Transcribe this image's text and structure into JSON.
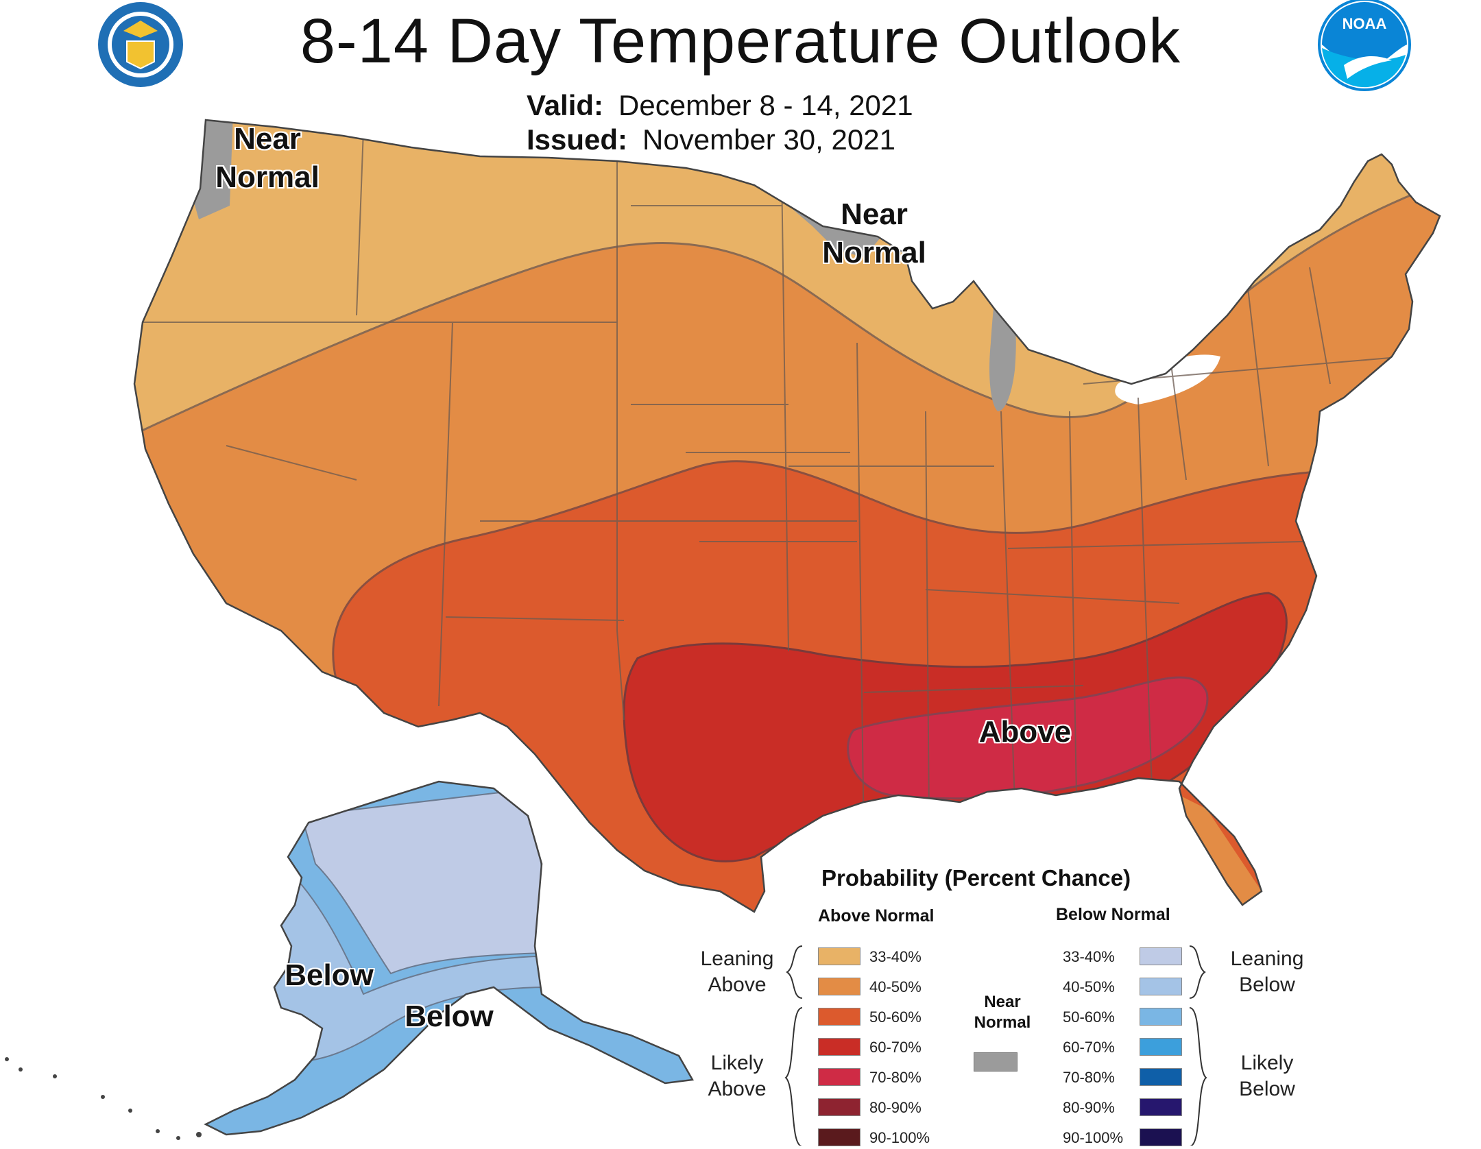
{
  "header": {
    "title": "8-14 Day Temperature Outlook",
    "valid_label": "Valid:",
    "valid_value": "December 8 - 14, 2021",
    "issued_label": "Issued:",
    "issued_value": "November 30, 2021"
  },
  "logos": {
    "left": {
      "icon": "department-of-commerce-seal-icon",
      "color": "#1f6fb5"
    },
    "right": {
      "icon": "noaa-logo-icon",
      "text": "NOAA",
      "color": "#0a85d6"
    }
  },
  "map_labels": {
    "pacific_nw": "Near\nNormal",
    "great_lakes": "Near\nNormal",
    "southeast": "Above",
    "alaska_north": "Below",
    "alaska_south": "Below"
  },
  "legend": {
    "title": "Probability (Percent Chance)",
    "above_header": "Above Normal",
    "below_header": "Below Normal",
    "near_normal_label": "Near\nNormal",
    "near_normal_color": "#9b9b9b",
    "leaning_above": "Leaning\nAbove",
    "likely_above": "Likely\nAbove",
    "leaning_below": "Leaning\nBelow",
    "likely_below": "Likely\nBelow",
    "above": [
      {
        "range": "33-40%",
        "color": "#e8b266"
      },
      {
        "range": "40-50%",
        "color": "#e38c45"
      },
      {
        "range": "50-60%",
        "color": "#dc5a2d"
      },
      {
        "range": "60-70%",
        "color": "#c92d26"
      },
      {
        "range": "70-80%",
        "color": "#cf2b45"
      },
      {
        "range": "80-90%",
        "color": "#8e2330"
      },
      {
        "range": "90-100%",
        "color": "#5a1a1d"
      }
    ],
    "below": [
      {
        "range": "33-40%",
        "color": "#bfcbe6"
      },
      {
        "range": "40-50%",
        "color": "#a4c3e6"
      },
      {
        "range": "50-60%",
        "color": "#7ab6e4"
      },
      {
        "range": "60-70%",
        "color": "#3c9fdc"
      },
      {
        "range": "70-80%",
        "color": "#0f5fa8"
      },
      {
        "range": "80-90%",
        "color": "#26176e"
      },
      {
        "range": "90-100%",
        "color": "#1b1151"
      }
    ]
  }
}
